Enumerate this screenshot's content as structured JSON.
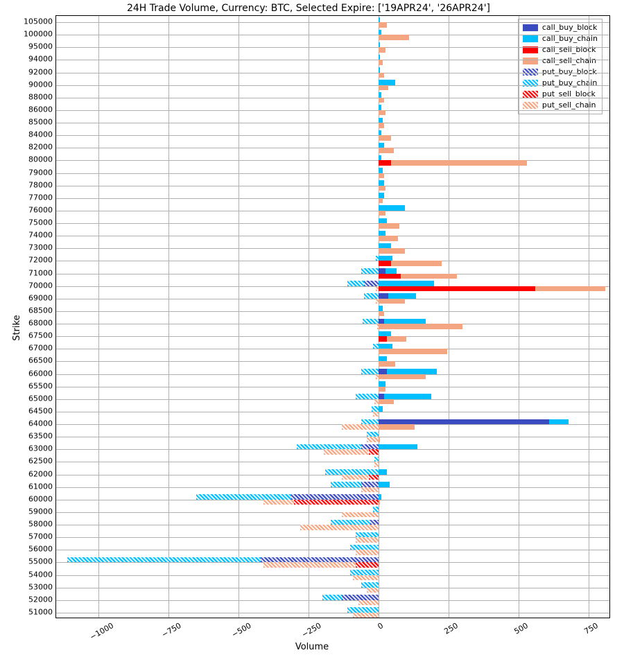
{
  "chart": {
    "type": "bar-horizontal-stacked-diverging",
    "title": "24H Trade Volume, Currency: BTC, Selected Expire: ['19APR24', '26APR24']",
    "xlabel": "Volume",
    "ylabel": "Strike",
    "background_color": "#ffffff",
    "grid_color": "#b0b0b0",
    "axis_color": "#000000",
    "title_fontsize": 14,
    "label_fontsize": 13,
    "tick_fontsize": 11,
    "xlim": [
      -1150,
      830
    ],
    "xticks": [
      -1000,
      -750,
      -500,
      -250,
      0,
      250,
      500,
      750
    ],
    "xtick_rotation": -30,
    "strikes": [
      51000,
      52000,
      53000,
      54000,
      55000,
      56000,
      57000,
      58000,
      59000,
      60000,
      61000,
      62000,
      62500,
      63000,
      63500,
      64000,
      64500,
      65000,
      65500,
      66000,
      66500,
      67000,
      67500,
      68000,
      68500,
      69000,
      70000,
      71000,
      72000,
      73000,
      74000,
      75000,
      76000,
      77000,
      78000,
      79000,
      80000,
      82000,
      84000,
      85000,
      86000,
      88000,
      90000,
      92000,
      94000,
      95000,
      100000,
      105000
    ],
    "bar_height": 7.5,
    "series": {
      "call_buy_block": {
        "color": "#3b4cc0",
        "hatched": false,
        "side": "pos",
        "row": 0
      },
      "call_buy_chain": {
        "color": "#00bfff",
        "hatched": false,
        "side": "pos",
        "row": 0
      },
      "call_sell_block": {
        "color": "#ff0000",
        "hatched": false,
        "side": "pos",
        "row": 1
      },
      "call_sell_chain": {
        "color": "#f4a582",
        "hatched": false,
        "side": "pos",
        "row": 1
      },
      "put_buy_block": {
        "color": "#3b4cc0",
        "hatched": true,
        "side": "neg",
        "row": 0
      },
      "put_buy_chain": {
        "color": "#00bfff",
        "hatched": true,
        "side": "neg",
        "row": 0
      },
      "put_sell_block": {
        "color": "#ff0000",
        "hatched": true,
        "side": "neg",
        "row": 1
      },
      "put_sell_chain": {
        "color": "#f4a582",
        "hatched": true,
        "side": "neg",
        "row": 1
      }
    },
    "legend_order": [
      "call_buy_block",
      "call_buy_chain",
      "call_sell_block",
      "call_sell_chain",
      "put_buy_block",
      "put_buy_chain",
      "put_sell_block",
      "put_sell_chain"
    ],
    "data": {
      "51000": {
        "put_buy_block": 0,
        "put_buy_chain": 110,
        "put_sell_block": 0,
        "put_sell_chain": 90,
        "call_buy_block": 0,
        "call_buy_chain": 0,
        "call_sell_block": 0,
        "call_sell_chain": 0
      },
      "52000": {
        "put_buy_block": 130,
        "put_buy_chain": 70,
        "put_sell_block": 0,
        "put_sell_chain": 70,
        "call_buy_block": 0,
        "call_buy_chain": 0,
        "call_sell_block": 0,
        "call_sell_chain": 0
      },
      "53000": {
        "put_buy_block": 0,
        "put_buy_chain": 60,
        "put_sell_block": 0,
        "put_sell_chain": 40,
        "call_buy_block": 0,
        "call_buy_chain": 0,
        "call_sell_block": 0,
        "call_sell_chain": 0
      },
      "54000": {
        "put_buy_block": 0,
        "put_buy_chain": 100,
        "put_sell_block": 0,
        "put_sell_chain": 90,
        "call_buy_block": 0,
        "call_buy_chain": 0,
        "call_sell_block": 0,
        "call_sell_chain": 0
      },
      "55000": {
        "put_buy_block": 420,
        "put_buy_chain": 690,
        "put_sell_block": 80,
        "put_sell_chain": 330,
        "call_buy_block": 0,
        "call_buy_chain": 0,
        "call_sell_block": 0,
        "call_sell_chain": 0
      },
      "56000": {
        "put_buy_block": 0,
        "put_buy_chain": 100,
        "put_sell_block": 0,
        "put_sell_chain": 80,
        "call_buy_block": 0,
        "call_buy_chain": 0,
        "call_sell_block": 0,
        "call_sell_chain": 0
      },
      "57000": {
        "put_buy_block": 0,
        "put_buy_chain": 80,
        "put_sell_block": 0,
        "put_sell_chain": 80,
        "call_buy_block": 0,
        "call_buy_chain": 0,
        "call_sell_block": 0,
        "call_sell_chain": 0
      },
      "58000": {
        "put_buy_block": 30,
        "put_buy_chain": 140,
        "put_sell_block": 0,
        "put_sell_chain": 280,
        "call_buy_block": 0,
        "call_buy_chain": 0,
        "call_sell_block": 0,
        "call_sell_chain": 0
      },
      "59000": {
        "put_buy_block": 0,
        "put_buy_chain": 20,
        "put_sell_block": 0,
        "put_sell_chain": 130,
        "call_buy_block": 0,
        "call_buy_chain": 0,
        "call_sell_block": 0,
        "call_sell_chain": 0
      },
      "60000": {
        "put_buy_block": 310,
        "put_buy_chain": 340,
        "put_sell_block": 300,
        "put_sell_chain": 110,
        "call_buy_block": 0,
        "call_buy_chain": 10,
        "call_sell_block": 0,
        "call_sell_chain": 5
      },
      "61000": {
        "put_buy_block": 60,
        "put_buy_chain": 110,
        "put_sell_block": 0,
        "put_sell_chain": 60,
        "call_buy_block": 0,
        "call_buy_chain": 40,
        "call_sell_block": 0,
        "call_sell_chain": 0
      },
      "62000": {
        "put_buy_block": 0,
        "put_buy_chain": 190,
        "put_sell_block": 35,
        "put_sell_chain": 95,
        "call_buy_block": 0,
        "call_buy_chain": 30,
        "call_sell_block": 0,
        "call_sell_chain": 0
      },
      "62500": {
        "put_buy_block": 0,
        "put_buy_chain": 15,
        "put_sell_block": 0,
        "put_sell_chain": 15,
        "call_buy_block": 0,
        "call_buy_chain": 0,
        "call_sell_block": 0,
        "call_sell_chain": 0
      },
      "63000": {
        "put_buy_block": 60,
        "put_buy_chain": 230,
        "put_sell_block": 35,
        "put_sell_chain": 160,
        "call_buy_block": 0,
        "call_buy_chain": 140,
        "call_sell_block": 0,
        "call_sell_chain": 0
      },
      "63500": {
        "put_buy_block": 0,
        "put_buy_chain": 40,
        "put_sell_block": 0,
        "put_sell_chain": 40,
        "call_buy_block": 0,
        "call_buy_chain": 0,
        "call_sell_block": 0,
        "call_sell_chain": 5
      },
      "64000": {
        "put_buy_block": 0,
        "put_buy_chain": 60,
        "put_sell_block": 0,
        "put_sell_chain": 130,
        "call_buy_block": 610,
        "call_buy_chain": 70,
        "call_sell_block": 0,
        "call_sell_chain": 130
      },
      "64500": {
        "put_buy_block": 0,
        "put_buy_chain": 25,
        "put_sell_block": 0,
        "put_sell_chain": 20,
        "call_buy_block": 0,
        "call_buy_chain": 15,
        "call_sell_block": 0,
        "call_sell_chain": 0
      },
      "65000": {
        "put_buy_block": 0,
        "put_buy_chain": 80,
        "put_sell_block": 0,
        "put_sell_chain": 15,
        "call_buy_block": 20,
        "call_buy_chain": 170,
        "call_sell_block": 0,
        "call_sell_chain": 55
      },
      "65500": {
        "put_buy_block": 0,
        "put_buy_chain": 0,
        "put_sell_block": 0,
        "put_sell_chain": 0,
        "call_buy_block": 0,
        "call_buy_chain": 25,
        "call_sell_block": 0,
        "call_sell_chain": 25
      },
      "66000": {
        "put_buy_block": 0,
        "put_buy_chain": 60,
        "put_sell_block": 0,
        "put_sell_chain": 10,
        "call_buy_block": 30,
        "call_buy_chain": 180,
        "call_sell_block": 0,
        "call_sell_chain": 170
      },
      "66500": {
        "put_buy_block": 0,
        "put_buy_chain": 0,
        "put_sell_block": 0,
        "put_sell_chain": 0,
        "call_buy_block": 0,
        "call_buy_chain": 30,
        "call_sell_block": 0,
        "call_sell_chain": 60
      },
      "67000": {
        "put_buy_block": 0,
        "put_buy_chain": 20,
        "put_sell_block": 0,
        "put_sell_chain": 0,
        "call_buy_block": 0,
        "call_buy_chain": 50,
        "call_sell_block": 0,
        "call_sell_chain": 245
      },
      "67500": {
        "put_buy_block": 0,
        "put_buy_chain": 0,
        "put_sell_block": 0,
        "put_sell_chain": 0,
        "call_buy_block": 0,
        "call_buy_chain": 45,
        "call_sell_block": 30,
        "call_sell_chain": 70
      },
      "68000": {
        "put_buy_block": 0,
        "put_buy_chain": 55,
        "put_sell_block": 0,
        "put_sell_chain": 5,
        "call_buy_block": 20,
        "call_buy_chain": 150,
        "call_sell_block": 0,
        "call_sell_chain": 300
      },
      "68500": {
        "put_buy_block": 0,
        "put_buy_chain": 0,
        "put_sell_block": 0,
        "put_sell_chain": 0,
        "call_buy_block": 0,
        "call_buy_chain": 15,
        "call_sell_block": 0,
        "call_sell_chain": 20
      },
      "69000": {
        "put_buy_block": 0,
        "put_buy_chain": 50,
        "put_sell_block": 0,
        "put_sell_chain": 10,
        "call_buy_block": 35,
        "call_buy_chain": 100,
        "call_sell_block": 0,
        "call_sell_chain": 95
      },
      "70000": {
        "put_buy_block": 50,
        "put_buy_chain": 60,
        "put_sell_block": 0,
        "put_sell_chain": 10,
        "call_buy_block": 0,
        "call_buy_chain": 200,
        "call_sell_block": 560,
        "call_sell_chain": 250
      },
      "71000": {
        "put_buy_block": 0,
        "put_buy_chain": 60,
        "put_sell_block": 0,
        "put_sell_chain": 0,
        "call_buy_block": 25,
        "call_buy_chain": 40,
        "call_sell_block": 80,
        "call_sell_chain": 200
      },
      "72000": {
        "put_buy_block": 0,
        "put_buy_chain": 10,
        "put_sell_block": 0,
        "put_sell_chain": 0,
        "call_buy_block": 0,
        "call_buy_chain": 50,
        "call_sell_block": 45,
        "call_sell_chain": 180
      },
      "73000": {
        "put_buy_block": 0,
        "put_buy_chain": 0,
        "put_sell_block": 0,
        "put_sell_chain": 0,
        "call_buy_block": 0,
        "call_buy_chain": 45,
        "call_sell_block": 0,
        "call_sell_chain": 95
      },
      "74000": {
        "put_buy_block": 0,
        "put_buy_chain": 0,
        "put_sell_block": 0,
        "put_sell_chain": 0,
        "call_buy_block": 0,
        "call_buy_chain": 25,
        "call_sell_block": 0,
        "call_sell_chain": 70
      },
      "75000": {
        "put_buy_block": 0,
        "put_buy_chain": 0,
        "put_sell_block": 0,
        "put_sell_chain": 0,
        "call_buy_block": 0,
        "call_buy_chain": 30,
        "call_sell_block": 0,
        "call_sell_chain": 75
      },
      "76000": {
        "put_buy_block": 0,
        "put_buy_chain": 0,
        "put_sell_block": 0,
        "put_sell_chain": 0,
        "call_buy_block": 0,
        "call_buy_chain": 95,
        "call_sell_block": 0,
        "call_sell_chain": 25
      },
      "77000": {
        "put_buy_block": 0,
        "put_buy_chain": 0,
        "put_sell_block": 0,
        "put_sell_chain": 0,
        "call_buy_block": 0,
        "call_buy_chain": 20,
        "call_sell_block": 0,
        "call_sell_chain": 15
      },
      "78000": {
        "put_buy_block": 0,
        "put_buy_chain": 0,
        "put_sell_block": 0,
        "put_sell_chain": 0,
        "call_buy_block": 0,
        "call_buy_chain": 20,
        "call_sell_block": 0,
        "call_sell_chain": 25
      },
      "79000": {
        "put_buy_block": 0,
        "put_buy_chain": 0,
        "put_sell_block": 0,
        "put_sell_chain": 0,
        "call_buy_block": 0,
        "call_buy_chain": 15,
        "call_sell_block": 0,
        "call_sell_chain": 20
      },
      "80000": {
        "put_buy_block": 0,
        "put_buy_chain": 0,
        "put_sell_block": 0,
        "put_sell_chain": 0,
        "call_buy_block": 0,
        "call_buy_chain": 10,
        "call_sell_block": 45,
        "call_sell_chain": 485
      },
      "82000": {
        "put_buy_block": 0,
        "put_buy_chain": 0,
        "put_sell_block": 0,
        "put_sell_chain": 0,
        "call_buy_block": 0,
        "call_buy_chain": 20,
        "call_sell_block": 0,
        "call_sell_chain": 55
      },
      "84000": {
        "put_buy_block": 0,
        "put_buy_chain": 0,
        "put_sell_block": 0,
        "put_sell_chain": 0,
        "call_buy_block": 0,
        "call_buy_chain": 10,
        "call_sell_block": 0,
        "call_sell_chain": 45
      },
      "85000": {
        "put_buy_block": 0,
        "put_buy_chain": 0,
        "put_sell_block": 0,
        "put_sell_chain": 0,
        "call_buy_block": 0,
        "call_buy_chain": 15,
        "call_sell_block": 0,
        "call_sell_chain": 20
      },
      "86000": {
        "put_buy_block": 0,
        "put_buy_chain": 0,
        "put_sell_block": 0,
        "put_sell_chain": 0,
        "call_buy_block": 0,
        "call_buy_chain": 10,
        "call_sell_block": 0,
        "call_sell_chain": 25
      },
      "88000": {
        "put_buy_block": 0,
        "put_buy_chain": 0,
        "put_sell_block": 0,
        "put_sell_chain": 0,
        "call_buy_block": 0,
        "call_buy_chain": 10,
        "call_sell_block": 0,
        "call_sell_chain": 20
      },
      "90000": {
        "put_buy_block": 0,
        "put_buy_chain": 0,
        "put_sell_block": 0,
        "put_sell_chain": 0,
        "call_buy_block": 0,
        "call_buy_chain": 60,
        "call_sell_block": 0,
        "call_sell_chain": 35
      },
      "92000": {
        "put_buy_block": 0,
        "put_buy_chain": 0,
        "put_sell_block": 0,
        "put_sell_chain": 0,
        "call_buy_block": 0,
        "call_buy_chain": 5,
        "call_sell_block": 0,
        "call_sell_chain": 20
      },
      "94000": {
        "put_buy_block": 0,
        "put_buy_chain": 0,
        "put_sell_block": 0,
        "put_sell_chain": 0,
        "call_buy_block": 0,
        "call_buy_chain": 5,
        "call_sell_block": 0,
        "call_sell_chain": 15
      },
      "95000": {
        "put_buy_block": 0,
        "put_buy_chain": 0,
        "put_sell_block": 0,
        "put_sell_chain": 0,
        "call_buy_block": 0,
        "call_buy_chain": 5,
        "call_sell_block": 0,
        "call_sell_chain": 25
      },
      "100000": {
        "put_buy_block": 0,
        "put_buy_chain": 0,
        "put_sell_block": 0,
        "put_sell_chain": 0,
        "call_buy_block": 0,
        "call_buy_chain": 10,
        "call_sell_block": 0,
        "call_sell_chain": 110
      },
      "105000": {
        "put_buy_block": 0,
        "put_buy_chain": 0,
        "put_sell_block": 0,
        "put_sell_chain": 0,
        "call_buy_block": 0,
        "call_buy_chain": 5,
        "call_sell_block": 0,
        "call_sell_chain": 30
      }
    }
  }
}
